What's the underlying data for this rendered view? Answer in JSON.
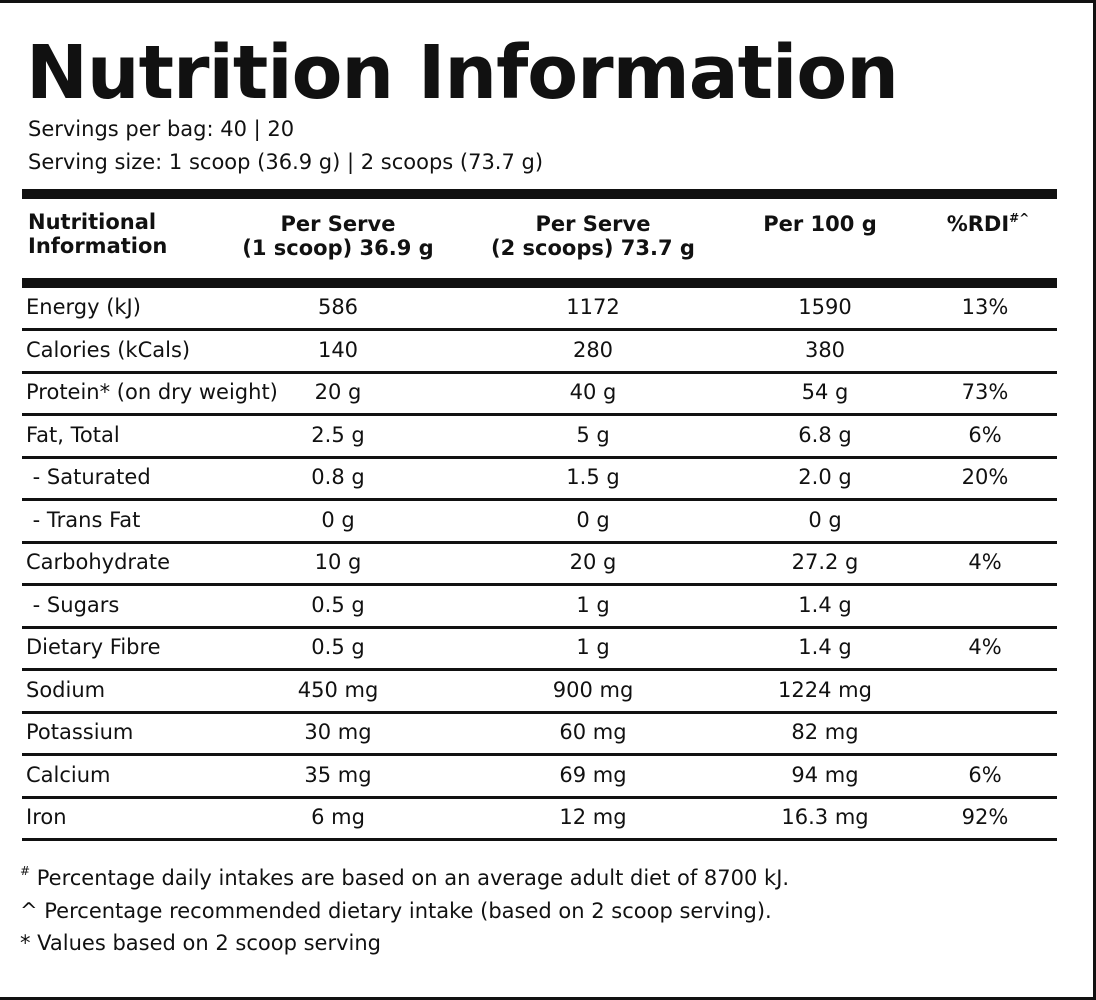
{
  "title": "Nutrition Information",
  "servings_per_bag": "Servings per bag: 40 | 20",
  "serving_size": "Serving size: 1 scoop (36.9 g) | 2 scoops (73.7 g)",
  "headers": {
    "col0_line1": "Nutritional",
    "col0_line2": "Information",
    "col1_line1": "Per Serve",
    "col1_line2": "(1 scoop) 36.9 g",
    "col2_line1": "Per Serve",
    "col2_line2": "(2 scoops) 73.7 g",
    "col3": "Per 100 g",
    "col4": "%RDI",
    "col4_marks": "#^"
  },
  "rows": [
    {
      "name": "Energy (kJ)",
      "one_scoop": "586",
      "two_scoops": "1172",
      "per100": "1590",
      "rdi": "13%"
    },
    {
      "name": "Calories (kCals)",
      "one_scoop": "140",
      "two_scoops": "280",
      "per100": "380",
      "rdi": ""
    },
    {
      "name": "Protein* (on dry weight)",
      "one_scoop": "20 g",
      "two_scoops": "40 g",
      "per100": "54 g",
      "rdi": "73%"
    },
    {
      "name": "Fat, Total",
      "one_scoop": "2.5 g",
      "two_scoops": "5 g",
      "per100": "6.8 g",
      "rdi": "6%"
    },
    {
      "name": " - Saturated",
      "one_scoop": "0.8 g",
      "two_scoops": "1.5 g",
      "per100": "2.0 g",
      "rdi": "20%"
    },
    {
      "name": " - Trans Fat",
      "one_scoop": "0 g",
      "two_scoops": "0 g",
      "per100": "0 g",
      "rdi": ""
    },
    {
      "name": "Carbohydrate",
      "one_scoop": "10 g",
      "two_scoops": "20 g",
      "per100": "27.2 g",
      "rdi": "4%"
    },
    {
      "name": " - Sugars",
      "one_scoop": "0.5 g",
      "two_scoops": "1 g",
      "per100": "1.4 g",
      "rdi": ""
    },
    {
      "name": "Dietary Fibre",
      "one_scoop": "0.5 g",
      "two_scoops": "1 g",
      "per100": "1.4 g",
      "rdi": "4%"
    },
    {
      "name": "Sodium",
      "one_scoop": "450 mg",
      "two_scoops": "900 mg",
      "per100": "1224 mg",
      "rdi": ""
    },
    {
      "name": "Potassium",
      "one_scoop": "30 mg",
      "two_scoops": "60 mg",
      "per100": "82 mg",
      "rdi": ""
    },
    {
      "name": "Calcium",
      "one_scoop": "35 mg",
      "two_scoops": "69 mg",
      "per100": "94 mg",
      "rdi": "6%"
    },
    {
      "name": "Iron",
      "one_scoop": "6 mg",
      "two_scoops": "12 mg",
      "per100": "16.3 mg",
      "rdi": "92%"
    }
  ],
  "footnotes": {
    "hash_mark": "#",
    "hash_text": "Percentage daily intakes are based on an average adult diet of 8700 kJ.",
    "caret_text": "^ Percentage recommended dietary intake (based on 2 scoop serving).",
    "star_text": "* Values based on 2 scoop serving"
  }
}
